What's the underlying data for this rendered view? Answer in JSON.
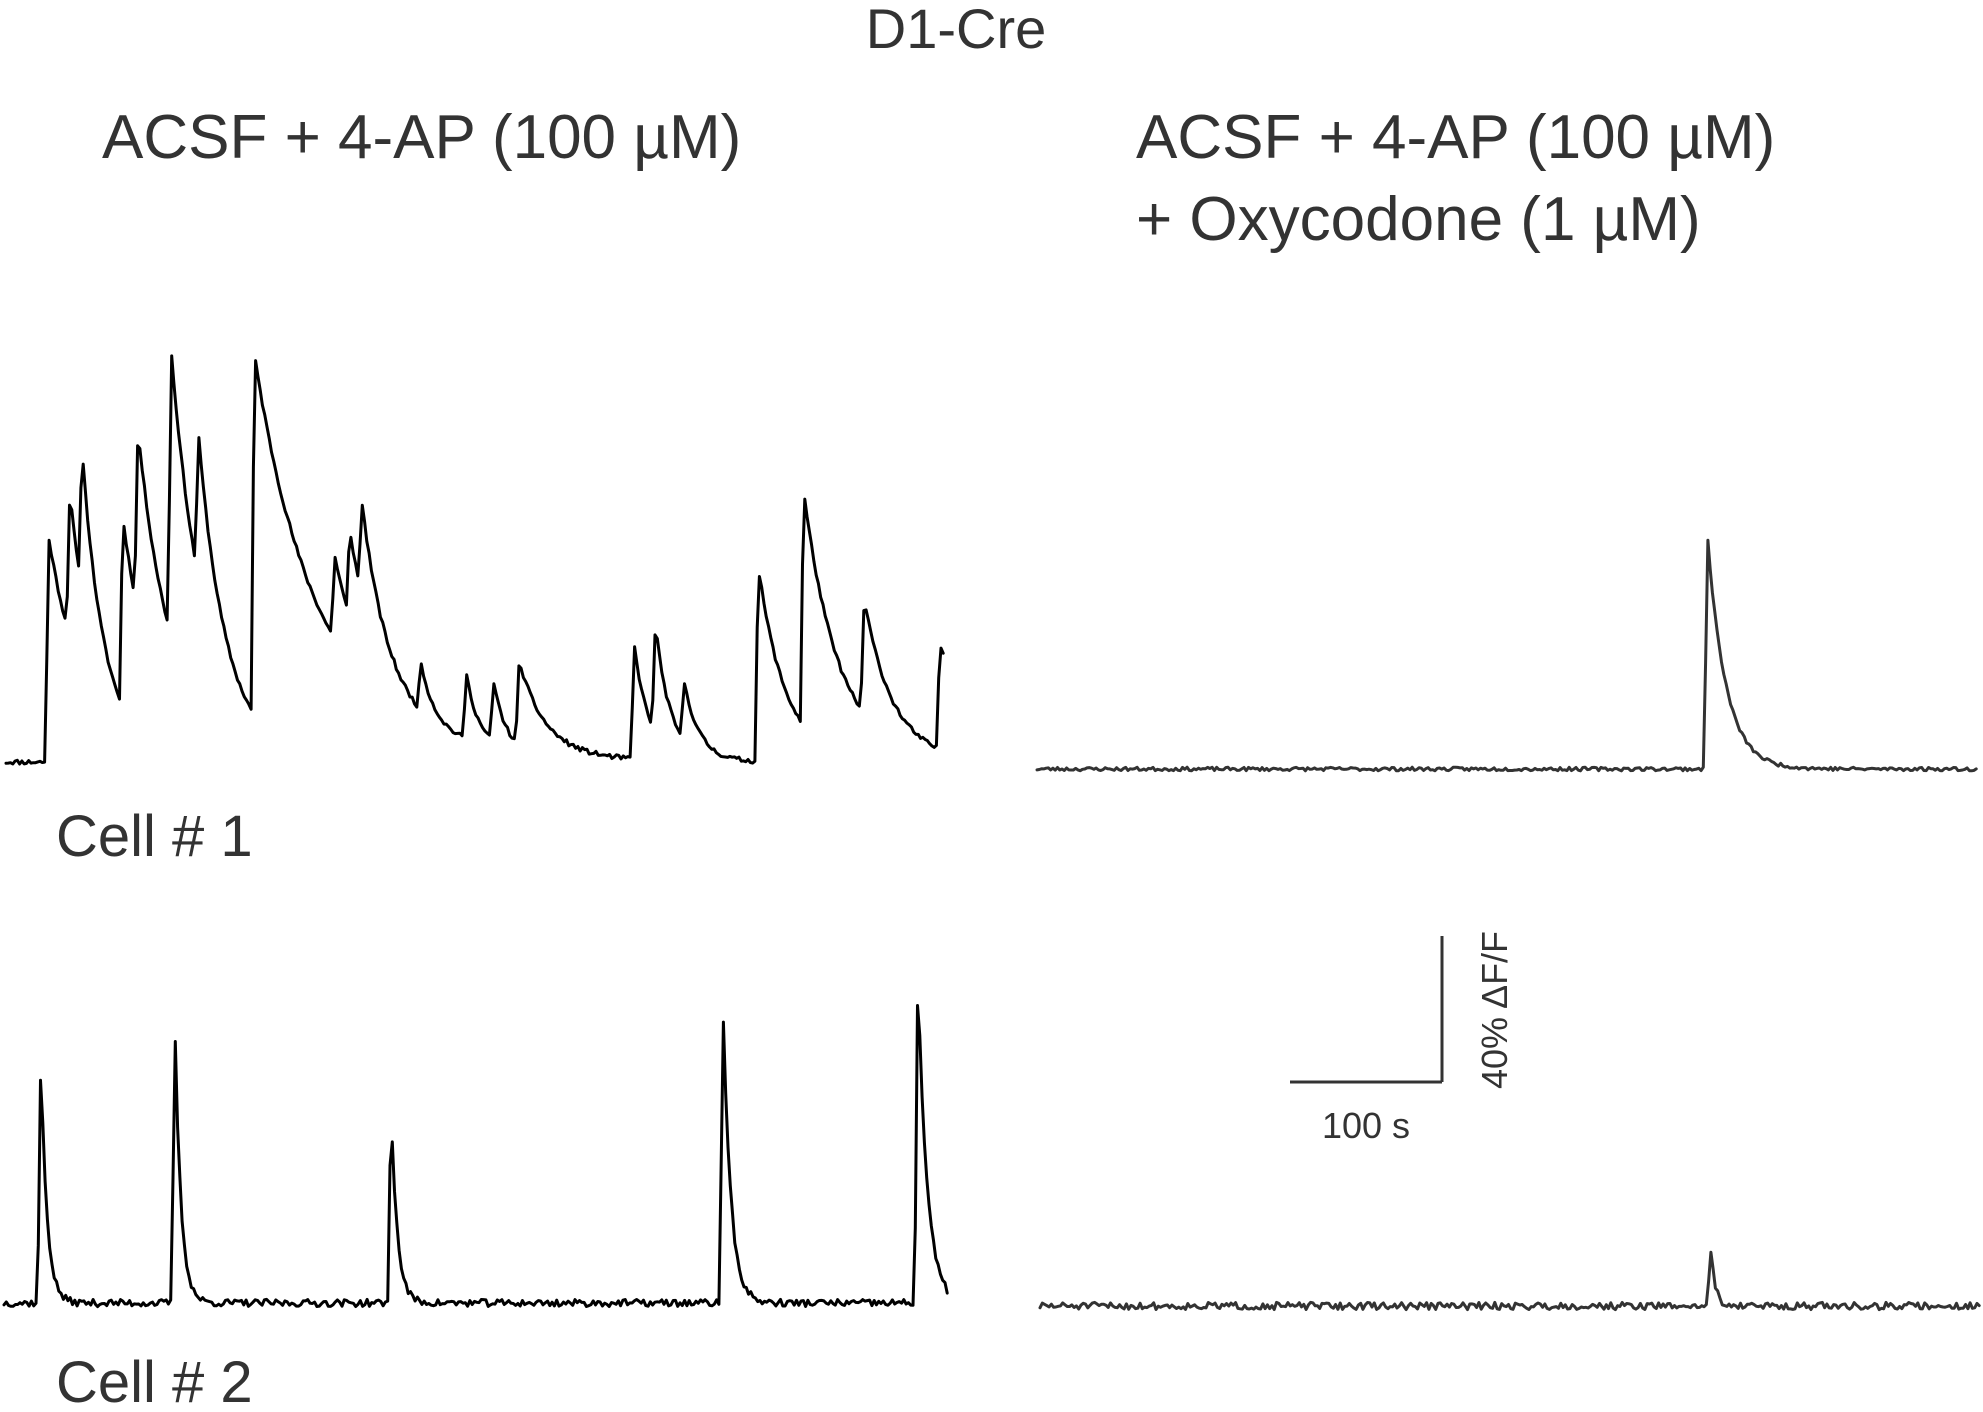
{
  "figure": {
    "title": "D1-Cre",
    "condition_left": "ACSF + 4-AP (100 µM)",
    "condition_right_line1": "ACSF + 4-AP (100 µM)",
    "condition_right_line2": "+ Oxycodone (1 µM)",
    "cell1_label": "Cell # 1",
    "cell2_label": "Cell # 2",
    "scale_time_label": "100 s",
    "scale_amp_label": "40% ΔF/F",
    "colors": {
      "left_trace": "#000000",
      "right_trace": "#333333",
      "text": "#333333"
    }
  },
  "chart_data": [
    {
      "type": "line",
      "title": "",
      "xlabel": "",
      "ylabel": "",
      "x_unit": "s",
      "y_unit": "% ΔF/F",
      "xlim": [
        0,
        620
      ],
      "ylim": [
        0,
        130
      ],
      "baseline": 0,
      "noise": 0.8,
      "seed": 11,
      "events": [
        {
          "t": 26,
          "amp": 75,
          "tau": 24
        },
        {
          "t": 40,
          "amp": 48,
          "tau": 14
        },
        {
          "t": 48,
          "amp": 48,
          "tau": 12
        },
        {
          "t": 75,
          "amp": 63,
          "tau": 22
        },
        {
          "t": 85,
          "amp": 60,
          "tau": 24
        },
        {
          "t": 107,
          "amp": 95,
          "tau": 22
        },
        {
          "t": 125,
          "amp": 48,
          "tau": 15
        },
        {
          "t": 162,
          "amp": 120,
          "tau": 48
        },
        {
          "t": 215,
          "amp": 28,
          "tau": 16
        },
        {
          "t": 225,
          "amp": 30,
          "tau": 16
        },
        {
          "t": 233,
          "amp": 32,
          "tau": 16
        },
        {
          "t": 272,
          "amp": 16,
          "tau": 8
        },
        {
          "t": 302,
          "amp": 22,
          "tau": 8
        },
        {
          "t": 320,
          "amp": 20,
          "tau": 8
        },
        {
          "t": 337,
          "amp": 28,
          "tau": 18
        },
        {
          "t": 413,
          "amp": 38,
          "tau": 10
        },
        {
          "t": 427,
          "amp": 36,
          "tau": 10
        },
        {
          "t": 446,
          "amp": 20,
          "tau": 10
        },
        {
          "t": 495,
          "amp": 65,
          "tau": 18
        },
        {
          "t": 525,
          "amp": 78,
          "tau": 24
        },
        {
          "t": 565,
          "amp": 38,
          "tau": 18
        },
        {
          "t": 615,
          "amp": 35,
          "tau": 30
        }
      ],
      "series": [
        {
          "values": []
        }
      ]
    },
    {
      "type": "line",
      "title": "",
      "xlabel": "",
      "ylabel": "",
      "x_unit": "s",
      "y_unit": "% ΔF/F",
      "xlim": [
        0,
        620
      ],
      "ylim": [
        0,
        130
      ],
      "baseline": 0,
      "noise": 0.6,
      "seed": 23,
      "events": [
        {
          "t": 440,
          "amp": 78,
          "tau": 12
        }
      ],
      "series": [
        {
          "values": []
        }
      ]
    },
    {
      "type": "line",
      "title": "",
      "xlabel": "",
      "ylabel": "",
      "x_unit": "s",
      "y_unit": "% ΔF/F",
      "xlim": [
        0,
        620
      ],
      "ylim": [
        0,
        130
      ],
      "baseline": 0,
      "noise": 1.2,
      "seed": 37,
      "events": [
        {
          "t": 22,
          "amp": 82,
          "tau": 4
        },
        {
          "t": 110,
          "amp": 93,
          "tau": 4
        },
        {
          "t": 252,
          "amp": 67,
          "tau": 4
        },
        {
          "t": 470,
          "amp": 100,
          "tau": 5
        },
        {
          "t": 598,
          "amp": 110,
          "tau": 6
        }
      ],
      "series": [
        {
          "values": []
        }
      ]
    },
    {
      "type": "line",
      "title": "",
      "xlabel": "",
      "ylabel": "",
      "x_unit": "s",
      "y_unit": "% ΔF/F",
      "xlim": [
        0,
        620
      ],
      "ylim": [
        0,
        130
      ],
      "baseline": 0,
      "noise": 1.2,
      "seed": 51,
      "events": [
        {
          "t": 440,
          "amp": 20,
          "tau": 3
        }
      ],
      "series": [
        {
          "values": []
        }
      ]
    }
  ]
}
